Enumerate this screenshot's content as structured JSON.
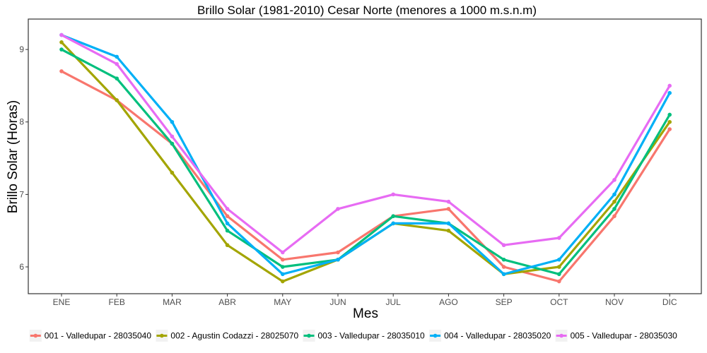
{
  "chart_data": {
    "type": "line",
    "title": "Brillo Solar (1981-2010) Cesar Norte (menores a 1000 m.s.n.m)",
    "xlabel": "Mes",
    "ylabel": "Brillo Solar (Horas)",
    "categories": [
      "ENE",
      "FEB",
      "MAR",
      "ABR",
      "MAY",
      "JUN",
      "JUL",
      "AGO",
      "SEP",
      "OCT",
      "NOV",
      "DIC"
    ],
    "yticks": [
      "6",
      "7",
      "8",
      "9"
    ],
    "ylim": [
      5.63,
      9.42
    ],
    "grid": false,
    "legend_position": "bottom",
    "series": [
      {
        "name": "001 - Valledupar - 28035040",
        "color": "#F8766D",
        "values": [
          8.7,
          8.3,
          7.7,
          6.7,
          6.1,
          6.2,
          6.7,
          6.8,
          6.0,
          5.8,
          6.7,
          7.9
        ]
      },
      {
        "name": "002 - Agustin Codazzi - 28025070",
        "color": "#A3A500",
        "values": [
          9.1,
          8.3,
          7.3,
          6.3,
          5.8,
          6.1,
          6.6,
          6.5,
          5.9,
          6.0,
          6.9,
          8.0
        ]
      },
      {
        "name": "003 - Valledupar - 28035010",
        "color": "#00BF7D",
        "values": [
          9.0,
          8.6,
          7.7,
          6.5,
          6.0,
          6.1,
          6.7,
          6.6,
          6.1,
          5.9,
          6.8,
          8.1
        ]
      },
      {
        "name": "004 - Valledupar - 28035020",
        "color": "#00B0F6",
        "values": [
          9.2,
          8.9,
          8.0,
          6.6,
          5.9,
          6.1,
          6.6,
          6.6,
          5.9,
          6.1,
          7.0,
          8.4
        ]
      },
      {
        "name": "005 - Valledupar - 28035030",
        "color": "#E76BF3",
        "values": [
          9.2,
          8.8,
          7.8,
          6.8,
          6.2,
          6.8,
          7.0,
          6.9,
          6.3,
          6.4,
          7.2,
          8.5
        ]
      }
    ]
  }
}
